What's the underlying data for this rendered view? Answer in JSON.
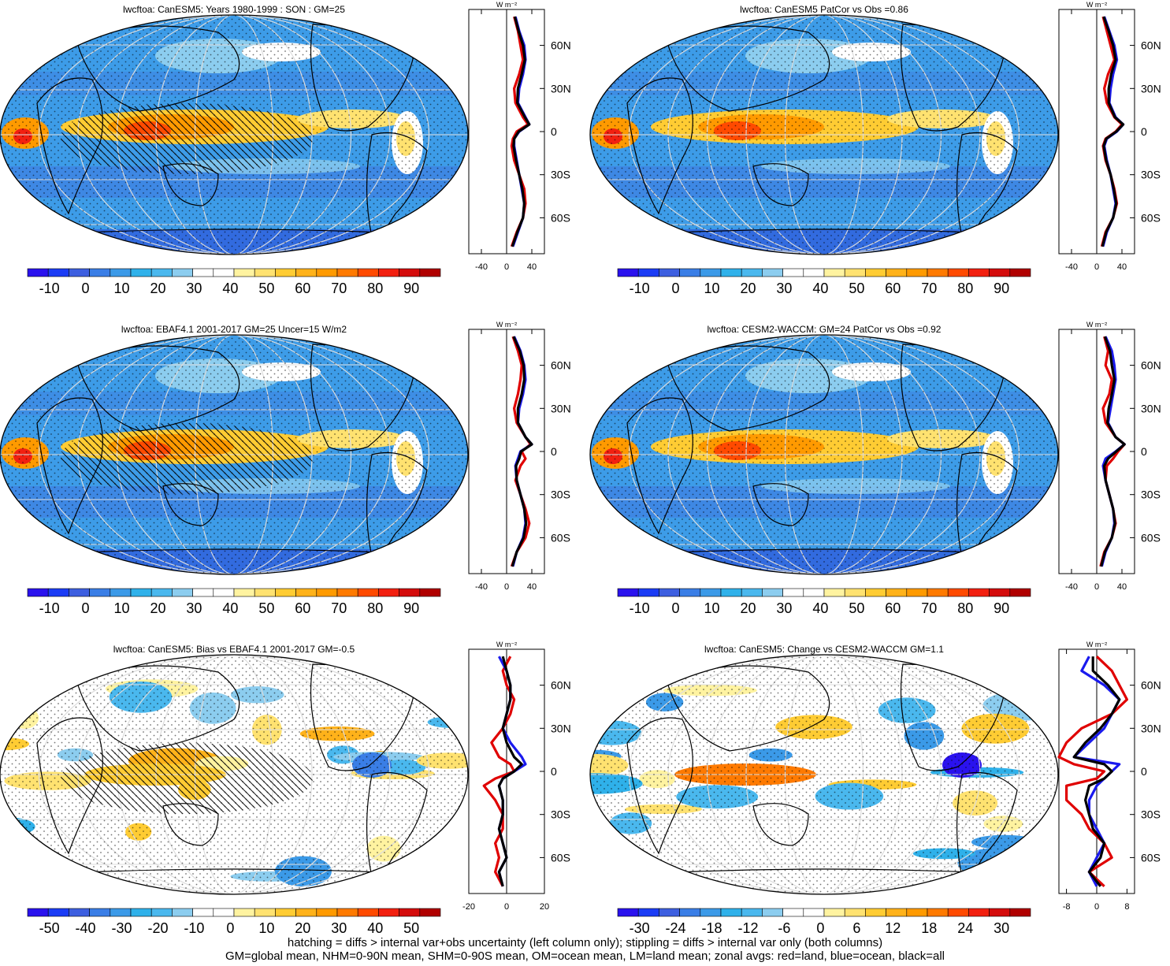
{
  "chart_data": [
    {
      "type": "heatmap",
      "title": "lwcftoa: CanESM5: Years 1980-1999 : SON : GM=25",
      "colorbar_ticks": [
        "-10",
        "0",
        "10",
        "20",
        "30",
        "40",
        "50",
        "60",
        "70",
        "80",
        "90"
      ],
      "colorbar_colors": [
        "#2a12ee",
        "#1b3cf5",
        "#3d5fe0",
        "#3a7ee6",
        "#3b9ae8",
        "#2fb1ea",
        "#4ab8ee",
        "#8ccdef",
        "#ffffff",
        "#ffffff",
        "#fff3a0",
        "#ffe270",
        "#ffcc33",
        "#ffb21a",
        "#ff9a00",
        "#ff7a00",
        "#ff4a00",
        "#f22010",
        "#d40c0c",
        "#b00000"
      ],
      "zonal": {
        "xlabel": "W m⁻²",
        "xticks": [
          "-40",
          "0",
          "40"
        ],
        "xlim": [
          -60,
          60
        ],
        "yticks": [
          "60N",
          "30N",
          "0",
          "30S",
          "60S"
        ],
        "ylim": [
          -85,
          85
        ],
        "lat": [
          80,
          70,
          60,
          50,
          40,
          30,
          20,
          10,
          5,
          0,
          -5,
          -10,
          -20,
          -30,
          -40,
          -50,
          -60,
          -70,
          -80
        ],
        "series": [
          {
            "name": "land",
            "color": "#e00000",
            "values": [
              12,
              18,
              22,
              26,
              20,
              12,
              14,
              26,
              34,
              16,
              10,
              8,
              12,
              20,
              28,
              30,
              26,
              16,
              8
            ]
          },
          {
            "name": "ocean",
            "color": "#1a1aee",
            "values": [
              14,
              20,
              28,
              30,
              26,
              20,
              18,
              30,
              36,
              20,
              12,
              12,
              16,
              20,
              24,
              28,
              26,
              18,
              10
            ]
          },
          {
            "name": "all",
            "color": "#000000",
            "values": [
              13,
              19,
              26,
              29,
              24,
              18,
              17,
              29,
              36,
              19,
              12,
              11,
              15,
              20,
              25,
              28,
              26,
              17,
              9
            ]
          }
        ]
      }
    },
    {
      "type": "heatmap",
      "title": "lwcftoa: CanESM5 PatCor vs Obs =0.86",
      "colorbar_ticks": [
        "-10",
        "0",
        "10",
        "20",
        "30",
        "40",
        "50",
        "60",
        "70",
        "80",
        "90"
      ],
      "colorbar_colors": [
        "#2a12ee",
        "#1b3cf5",
        "#3d5fe0",
        "#3a7ee6",
        "#3b9ae8",
        "#2fb1ea",
        "#4ab8ee",
        "#8ccdef",
        "#ffffff",
        "#ffffff",
        "#fff3a0",
        "#ffe270",
        "#ffcc33",
        "#ffb21a",
        "#ff9a00",
        "#ff7a00",
        "#ff4a00",
        "#f22010",
        "#d40c0c",
        "#b00000"
      ],
      "zonal": {
        "xlabel": "W m⁻²",
        "xticks": [
          "-40",
          "0",
          "40"
        ],
        "xlim": [
          -60,
          60
        ],
        "yticks": [
          "60N",
          "30N",
          "0",
          "30S",
          "60S"
        ],
        "ylim": [
          -85,
          85
        ],
        "lat": [
          80,
          70,
          60,
          50,
          40,
          30,
          20,
          10,
          5,
          0,
          -5,
          -10,
          -20,
          -30,
          -40,
          -50,
          -60,
          -70,
          -80
        ],
        "series": [
          {
            "name": "land",
            "color": "#e00000",
            "values": [
              10,
              16,
              22,
              28,
              18,
              12,
              16,
              28,
              40,
              30,
              14,
              10,
              14,
              22,
              28,
              32,
              26,
              14,
              8
            ]
          },
          {
            "name": "ocean",
            "color": "#1a1aee",
            "values": [
              12,
              20,
              28,
              32,
              26,
              22,
              20,
              30,
              42,
              32,
              16,
              12,
              16,
              22,
              26,
              30,
              26,
              16,
              10
            ]
          },
          {
            "name": "all",
            "color": "#000000",
            "values": [
              11,
              19,
              26,
              30,
              23,
              19,
              19,
              29,
              42,
              31,
              15,
              11,
              15,
              22,
              27,
              31,
              26,
              15,
              9
            ]
          }
        ]
      }
    },
    {
      "type": "heatmap",
      "title": "lwcftoa: EBAF4.1 2001-2017 GM=25 Uncer=15 W/m2",
      "colorbar_ticks": [
        "-10",
        "0",
        "10",
        "20",
        "30",
        "40",
        "50",
        "60",
        "70",
        "80",
        "90"
      ],
      "colorbar_colors": [
        "#2a12ee",
        "#1b3cf5",
        "#3d5fe0",
        "#3a7ee6",
        "#3b9ae8",
        "#2fb1ea",
        "#4ab8ee",
        "#8ccdef",
        "#ffffff",
        "#ffffff",
        "#fff3a0",
        "#ffe270",
        "#ffcc33",
        "#ffb21a",
        "#ff9a00",
        "#ff7a00",
        "#ff4a00",
        "#f22010",
        "#d40c0c",
        "#b00000"
      ],
      "zonal": {
        "xlabel": "W m⁻²",
        "xticks": [
          "-40",
          "0",
          "40"
        ],
        "xlim": [
          -60,
          60
        ],
        "yticks": [
          "60N",
          "30N",
          "0",
          "30S",
          "60S"
        ],
        "ylim": [
          -85,
          85
        ],
        "lat": [
          80,
          70,
          60,
          50,
          40,
          30,
          20,
          10,
          5,
          0,
          -5,
          -10,
          -20,
          -30,
          -40,
          -50,
          -60,
          -70,
          -80
        ],
        "series": [
          {
            "name": "land",
            "color": "#e00000",
            "values": [
              10,
              18,
              24,
              22,
              18,
              12,
              16,
              30,
              38,
              24,
              30,
              22,
              14,
              22,
              30,
              36,
              30,
              16,
              8
            ]
          },
          {
            "name": "ocean",
            "color": "#1a1aee",
            "values": [
              12,
              22,
              28,
              30,
              26,
              20,
              18,
              30,
              40,
              22,
              18,
              14,
              16,
              22,
              28,
              30,
              26,
              16,
              10
            ]
          },
          {
            "name": "all",
            "color": "#000000",
            "values": [
              11,
              21,
              27,
              28,
              24,
              18,
              18,
              30,
              40,
              23,
              20,
              15,
              16,
              22,
              28,
              31,
              27,
              16,
              9
            ]
          }
        ]
      }
    },
    {
      "type": "heatmap",
      "title": "lwcftoa: CESM2-WACCM: GM=24 PatCor vs Obs =0.92",
      "colorbar_ticks": [
        "-10",
        "0",
        "10",
        "20",
        "30",
        "40",
        "50",
        "60",
        "70",
        "80",
        "90"
      ],
      "colorbar_colors": [
        "#2a12ee",
        "#1b3cf5",
        "#3d5fe0",
        "#3a7ee6",
        "#3b9ae8",
        "#2fb1ea",
        "#4ab8ee",
        "#8ccdef",
        "#ffffff",
        "#ffffff",
        "#fff3a0",
        "#ffe270",
        "#ffcc33",
        "#ffb21a",
        "#ff9a00",
        "#ff7a00",
        "#ff4a00",
        "#f22010",
        "#d40c0c",
        "#b00000"
      ],
      "zonal": {
        "xlabel": "W m⁻²",
        "xticks": [
          "-40",
          "0",
          "40"
        ],
        "xlim": [
          -60,
          60
        ],
        "yticks": [
          "60N",
          "30N",
          "0",
          "30S",
          "60S"
        ],
        "ylim": [
          -85,
          85
        ],
        "lat": [
          80,
          70,
          60,
          50,
          40,
          30,
          20,
          10,
          5,
          0,
          -5,
          -10,
          -20,
          -30,
          -40,
          -50,
          -60,
          -70,
          -80
        ],
        "series": [
          {
            "name": "land",
            "color": "#e00000",
            "values": [
              12,
              18,
              14,
              24,
              20,
              10,
              14,
              30,
              44,
              34,
              26,
              16,
              14,
              20,
              26,
              30,
              24,
              12,
              6
            ]
          },
          {
            "name": "ocean",
            "color": "#1a1aee",
            "values": [
              14,
              24,
              28,
              30,
              26,
              22,
              18,
              30,
              44,
              30,
              14,
              10,
              14,
              20,
              26,
              28,
              24,
              14,
              8
            ]
          },
          {
            "name": "all",
            "color": "#000000",
            "values": [
              13,
              21,
              24,
              28,
              24,
              19,
              17,
              30,
              44,
              31,
              18,
              12,
              14,
              20,
              26,
              29,
              24,
              13,
              7
            ]
          }
        ]
      }
    },
    {
      "type": "heatmap",
      "title": "lwcftoa: CanESM5: Bias vs EBAF4.1 2001-2017  GM=-0.5",
      "colorbar_ticks": [
        "-50",
        "-40",
        "-30",
        "-20",
        "-10",
        "0",
        "10",
        "20",
        "30",
        "40",
        "50"
      ],
      "colorbar_colors": [
        "#2a12ee",
        "#1b3cf5",
        "#3d5fe0",
        "#3a7ee6",
        "#3b9ae8",
        "#2fb1ea",
        "#4ab8ee",
        "#8ccdef",
        "#ffffff",
        "#ffffff",
        "#fff3a0",
        "#ffe270",
        "#ffcc33",
        "#ffb21a",
        "#ff9a00",
        "#ff7a00",
        "#ff4a00",
        "#f22010",
        "#d40c0c",
        "#b00000"
      ],
      "zonal": {
        "xlabel": "W m⁻²",
        "xticks": [
          "-20",
          "0",
          "20"
        ],
        "xlim": [
          -20,
          20
        ],
        "yticks": [
          "60N",
          "30N",
          "0",
          "30S",
          "60S"
        ],
        "ylim": [
          -85,
          85
        ],
        "lat": [
          80,
          70,
          60,
          50,
          40,
          30,
          20,
          10,
          5,
          0,
          -5,
          -10,
          -20,
          -30,
          -40,
          -50,
          -60,
          -70,
          -80
        ],
        "series": [
          {
            "name": "land",
            "color": "#e00000",
            "values": [
              2,
              -2,
              0,
              4,
              2,
              -2,
              -8,
              -4,
              2,
              4,
              -6,
              -12,
              -6,
              -2,
              -2,
              -6,
              -4,
              -6,
              -2
            ]
          },
          {
            "name": "ocean",
            "color": "#1a1aee",
            "values": [
              -4,
              0,
              2,
              2,
              0,
              -2,
              2,
              8,
              10,
              4,
              -2,
              -4,
              -2,
              -2,
              -4,
              -2,
              0,
              -4,
              -2
            ]
          },
          {
            "name": "all",
            "color": "#000000",
            "values": [
              -2,
              0,
              2,
              2,
              0,
              -2,
              0,
              4,
              8,
              4,
              -2,
              -4,
              -2,
              -2,
              -4,
              -2,
              0,
              -4,
              -2
            ]
          }
        ]
      }
    },
    {
      "type": "heatmap",
      "title": "lwcftoa: CanESM5: Change vs CESM2-WACCM GM=1.1",
      "colorbar_ticks": [
        "-30",
        "-24",
        "-18",
        "-12",
        "-6",
        "0",
        "6",
        "12",
        "18",
        "24",
        "30"
      ],
      "colorbar_colors": [
        "#2a12ee",
        "#1b3cf5",
        "#3d5fe0",
        "#3a7ee6",
        "#3b9ae8",
        "#2fb1ea",
        "#4ab8ee",
        "#8ccdef",
        "#ffffff",
        "#ffffff",
        "#fff3a0",
        "#ffe270",
        "#ffcc33",
        "#ffb21a",
        "#ff9a00",
        "#ff7a00",
        "#ff4a00",
        "#f22010",
        "#d40c0c",
        "#b00000"
      ],
      "zonal": {
        "xlabel": "W m⁻²",
        "xticks": [
          "-8",
          "0",
          "8"
        ],
        "xlim": [
          -10,
          10
        ],
        "yticks": [
          "60N",
          "30N",
          "0",
          "30S",
          "60S"
        ],
        "ylim": [
          -85,
          85
        ],
        "lat": [
          80,
          70,
          60,
          50,
          40,
          30,
          20,
          10,
          5,
          0,
          -5,
          -10,
          -20,
          -30,
          -40,
          -50,
          -60,
          -70,
          -80
        ],
        "series": [
          {
            "name": "land",
            "color": "#e00000",
            "values": [
              0,
              4,
              6,
              8,
              4,
              -4,
              -8,
              -10,
              -6,
              2,
              0,
              -8,
              -8,
              -4,
              -2,
              2,
              4,
              -2,
              2
            ]
          },
          {
            "name": "ocean",
            "color": "#1a1aee",
            "values": [
              -2,
              -4,
              2,
              6,
              4,
              2,
              -2,
              -6,
              6,
              4,
              2,
              0,
              -2,
              -2,
              0,
              2,
              0,
              -2,
              0
            ]
          },
          {
            "name": "all",
            "color": "#000000",
            "values": [
              -1,
              -1,
              3,
              6,
              4,
              1,
              -3,
              -6,
              2,
              4,
              2,
              -2,
              -3,
              -2,
              -1,
              2,
              1,
              -2,
              1
            ]
          }
        ]
      }
    }
  ],
  "footer": {
    "line1": "hatching = diffs > internal var+obs uncertainty (left column only); stippling = diffs > internal var only (both columns)",
    "line2": "GM=global mean, NHM=0-90N mean, SHM=0-90S mean, OM=ocean mean, LM=land mean; zonal avgs: red=land, blue=ocean, black=all"
  },
  "colors": {
    "ocean_base": "#3b9ae8",
    "graticule": "#d8d8d8",
    "coast": "#000000"
  }
}
